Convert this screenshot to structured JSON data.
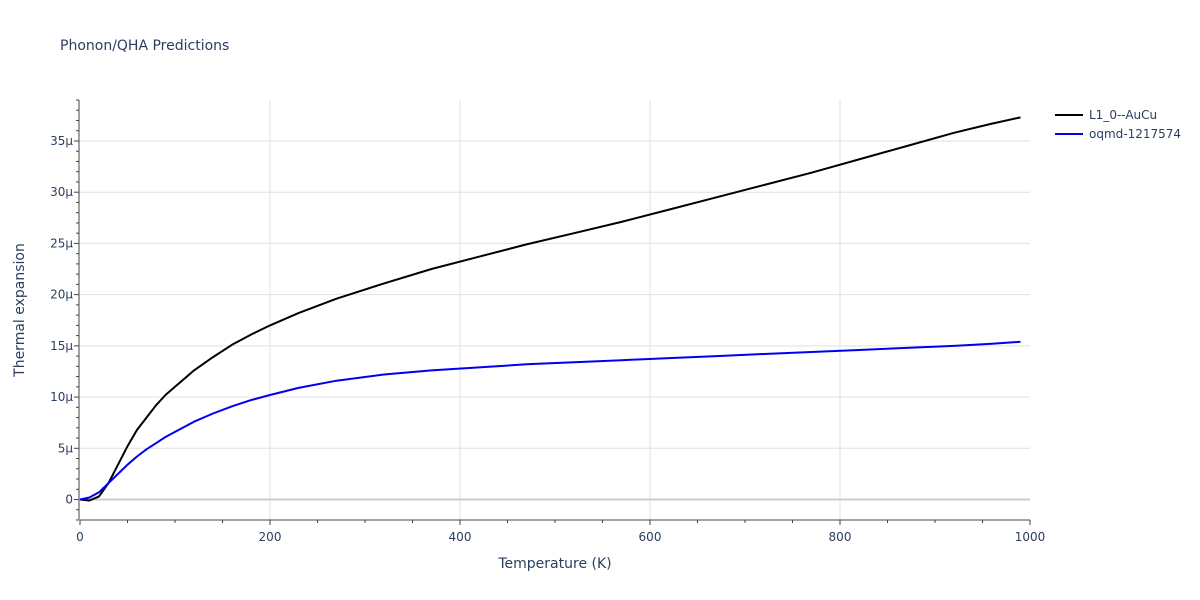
{
  "chart_data": {
    "type": "line",
    "title": "Phonon/QHA Predictions",
    "xlabel": "Temperature (K)",
    "ylabel": "Thermal expansion",
    "xlim": [
      0,
      1000
    ],
    "ylim": [
      -2,
      39
    ],
    "x_ticks": [
      {
        "value": 0,
        "label": "0"
      },
      {
        "value": 200,
        "label": "200"
      },
      {
        "value": 400,
        "label": "400"
      },
      {
        "value": 600,
        "label": "600"
      },
      {
        "value": 800,
        "label": "800"
      },
      {
        "value": 1000,
        "label": "1000"
      }
    ],
    "y_ticks": [
      {
        "value": 0,
        "label": "0"
      },
      {
        "value": 5,
        "label": "5μ"
      },
      {
        "value": 10,
        "label": "10μ"
      },
      {
        "value": 15,
        "label": "15μ"
      },
      {
        "value": 20,
        "label": "20μ"
      },
      {
        "value": 25,
        "label": "25μ"
      },
      {
        "value": 30,
        "label": "30μ"
      },
      {
        "value": 35,
        "label": "35μ"
      }
    ],
    "grid": true,
    "legend_position": "top-right",
    "series": [
      {
        "name": "L1_0--AuCu",
        "color": "#000000",
        "x": [
          0,
          10,
          20,
          30,
          40,
          50,
          60,
          70,
          80,
          90,
          100,
          120,
          140,
          160,
          180,
          200,
          230,
          270,
          320,
          370,
          420,
          470,
          520,
          570,
          620,
          670,
          720,
          770,
          820,
          870,
          920,
          960,
          990
        ],
        "y": [
          0,
          -0.1,
          0.3,
          1.6,
          3.4,
          5.2,
          6.8,
          8.0,
          9.2,
          10.2,
          11.0,
          12.6,
          13.9,
          15.1,
          16.1,
          17.0,
          18.2,
          19.6,
          21.1,
          22.5,
          23.7,
          24.9,
          26.0,
          27.1,
          28.3,
          29.5,
          30.7,
          31.9,
          33.2,
          34.5,
          35.8,
          36.7,
          37.3
        ]
      },
      {
        "name": "oqmd-1217574",
        "color": "#0000ee",
        "x": [
          0,
          10,
          20,
          30,
          40,
          50,
          60,
          70,
          80,
          90,
          100,
          120,
          140,
          160,
          180,
          200,
          230,
          270,
          320,
          370,
          420,
          470,
          520,
          570,
          620,
          670,
          720,
          770,
          820,
          870,
          920,
          960,
          990
        ],
        "y": [
          0,
          0.2,
          0.7,
          1.6,
          2.5,
          3.4,
          4.2,
          4.9,
          5.5,
          6.1,
          6.6,
          7.6,
          8.4,
          9.1,
          9.7,
          10.2,
          10.9,
          11.6,
          12.2,
          12.6,
          12.9,
          13.2,
          13.4,
          13.6,
          13.8,
          14.0,
          14.2,
          14.4,
          14.6,
          14.8,
          15.0,
          15.2,
          15.4
        ]
      }
    ]
  }
}
